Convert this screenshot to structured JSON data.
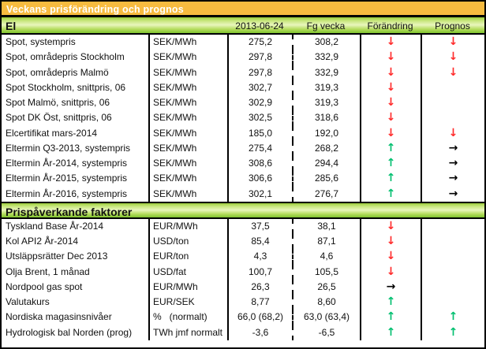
{
  "title": "Veckans prisförändring och prognos",
  "columns": {
    "date": "2013-06-24",
    "prev": "Fg vecka",
    "change": "Förändring",
    "forecast": "Prognos"
  },
  "arrows": {
    "down": "↓",
    "up": "↑",
    "right": "→"
  },
  "colors": {
    "title_bg": "#F7BB3F",
    "title_text": "#FFFFFF",
    "section_green_top": "#9CCD3C",
    "section_green_light": "#E9F6BD",
    "section_green_bottom": "#7FC32E",
    "arrow_down_red": "#FF2A2A",
    "arrow_up_green": "#00BF6F",
    "arrow_right_black": "#000000"
  },
  "sections": [
    {
      "header": "El",
      "rows": [
        {
          "name": "Spot, systempris",
          "unit": "SEK/MWh",
          "current": "275,2",
          "previous": "308,2",
          "change": "down",
          "forecast": "down"
        },
        {
          "name": "Spot, områdepris Stockholm",
          "unit": "SEK/MWh",
          "current": "297,8",
          "previous": "332,9",
          "change": "down",
          "forecast": "down"
        },
        {
          "name": "Spot, områdepris Malmö",
          "unit": "SEK/MWh",
          "current": "297,8",
          "previous": "332,9",
          "change": "down",
          "forecast": "down"
        },
        {
          "name": "Spot Stockholm, snittpris,  06",
          "unit": "SEK/MWh",
          "current": "302,7",
          "previous": "319,3",
          "change": "down",
          "forecast": "none"
        },
        {
          "name": "Spot Malmö, snittpris,  06",
          "unit": "SEK/MWh",
          "current": "302,9",
          "previous": "319,3",
          "change": "down",
          "forecast": "none"
        },
        {
          "name": "Spot DK Öst, snittpris,  06",
          "unit": "SEK/MWh",
          "current": "302,5",
          "previous": "318,6",
          "change": "down",
          "forecast": "none"
        },
        {
          "name": "Elcertifikat mars-2014",
          "unit": "SEK/MWh",
          "current": "185,0",
          "previous": "192,0",
          "change": "down",
          "forecast": "down"
        },
        {
          "name": "Eltermin Q3-2013, systempris",
          "unit": "SEK/MWh",
          "current": "275,4",
          "previous": "268,2",
          "change": "up",
          "forecast": "right"
        },
        {
          "name": "Eltermin År-2014, systempris",
          "unit": "SEK/MWh",
          "current": "308,6",
          "previous": "294,4",
          "change": "up",
          "forecast": "right"
        },
        {
          "name": "Eltermin År-2015, systempris",
          "unit": "SEK/MWh",
          "current": "306,6",
          "previous": "285,6",
          "change": "up",
          "forecast": "right"
        },
        {
          "name": "Eltermin År-2016, systempris",
          "unit": "SEK/MWh",
          "current": "302,1",
          "previous": "276,7",
          "change": "up",
          "forecast": "right"
        }
      ]
    },
    {
      "header": "Prispåverkande faktorer",
      "rows": [
        {
          "name": "Tyskland Base År-2014",
          "unit": "EUR/MWh",
          "current": "37,5",
          "previous": "38,1",
          "change": "down",
          "forecast": "none"
        },
        {
          "name": "Kol API2 År-2014",
          "unit": "USD/ton",
          "current": "85,4",
          "previous": "87,1",
          "change": "down",
          "forecast": "none"
        },
        {
          "name": "Utsläppsrätter Dec 2013",
          "unit": "EUR/ton",
          "current": "4,3",
          "previous": "4,6",
          "change": "down",
          "forecast": "none"
        },
        {
          "name": "Olja Brent, 1 månad",
          "unit": "USD/fat",
          "current": "100,7",
          "previous": "105,5",
          "change": "down",
          "forecast": "none"
        },
        {
          "name": "Nordpool gas spot",
          "unit": "EUR/MWh",
          "current": "26,3",
          "previous": "26,5",
          "change": "right",
          "forecast": "none"
        },
        {
          "name": "Valutakurs",
          "unit": "EUR/SEK",
          "current": "8,77",
          "previous": "8,60",
          "change": "up",
          "forecast": "none"
        },
        {
          "name": "Nordiska magasinsnivåer",
          "unit": "%   (normalt)",
          "current": "66,0 (68,2)",
          "previous": "63,0 (63,4)",
          "change": "up",
          "forecast": "up"
        },
        {
          "name": "Hydrologisk bal Norden (prog)",
          "unit": "TWh jmf normalt",
          "current": "-3,6",
          "previous": "-6,5",
          "change": "up",
          "forecast": "up"
        }
      ]
    }
  ]
}
